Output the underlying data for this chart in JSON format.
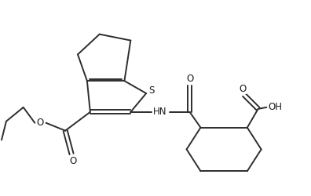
{
  "background_color": "#ffffff",
  "bond_color": "#2d2d2d",
  "label_color": "#1a1a1a",
  "figsize": [
    3.96,
    2.5
  ],
  "dpi": 100,
  "lw": 1.4,
  "fs": 8.0,
  "xlim": [
    0,
    10
  ],
  "ylim": [
    0,
    6.3
  ]
}
